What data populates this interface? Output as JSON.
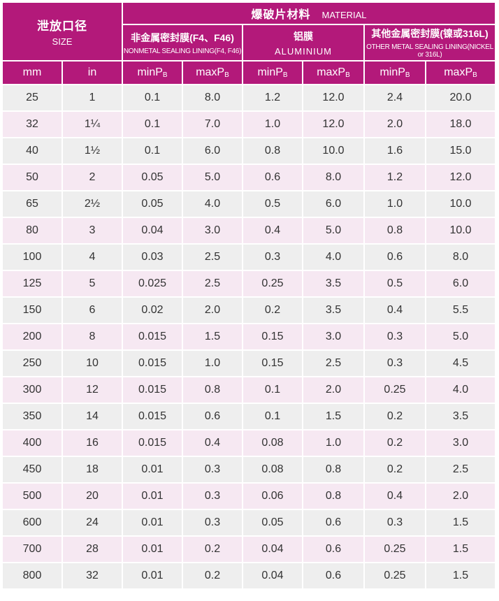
{
  "header": {
    "size_cn": "泄放口径",
    "size_en": "SIZE",
    "material_cn": "爆破片材料",
    "material_en": "MATERIAL",
    "groups": [
      {
        "cn": "非金属密封膜(F4、F46)",
        "en": "NONMETAL SEALING LINING(F4, F46)"
      },
      {
        "cn": "铝膜",
        "en": "ALUMINIUM"
      },
      {
        "cn": "其他金属密封膜(镍或316L)",
        "en": "OTHER METAL SEALING LINING(NICKEL or 316L)"
      }
    ],
    "units": {
      "mm": "mm",
      "in": "in",
      "min_prefix": "minP",
      "max_prefix": "maxP",
      "subscript": "B"
    }
  },
  "rows": [
    {
      "mm": "25",
      "in": "1",
      "nm_min": "0.1",
      "nm_max": "8.0",
      "al_min": "1.2",
      "al_max": "12.0",
      "ot_min": "2.4",
      "ot_max": "20.0"
    },
    {
      "mm": "32",
      "in": "1¼",
      "nm_min": "0.1",
      "nm_max": "7.0",
      "al_min": "1.0",
      "al_max": "12.0",
      "ot_min": "2.0",
      "ot_max": "18.0"
    },
    {
      "mm": "40",
      "in": "1½",
      "nm_min": "0.1",
      "nm_max": "6.0",
      "al_min": "0.8",
      "al_max": "10.0",
      "ot_min": "1.6",
      "ot_max": "15.0"
    },
    {
      "mm": "50",
      "in": "2",
      "nm_min": "0.05",
      "nm_max": "5.0",
      "al_min": "0.6",
      "al_max": "8.0",
      "ot_min": "1.2",
      "ot_max": "12.0"
    },
    {
      "mm": "65",
      "in": "2½",
      "nm_min": "0.05",
      "nm_max": "4.0",
      "al_min": "0.5",
      "al_max": "6.0",
      "ot_min": "1.0",
      "ot_max": "10.0"
    },
    {
      "mm": "80",
      "in": "3",
      "nm_min": "0.04",
      "nm_max": "3.0",
      "al_min": "0.4",
      "al_max": "5.0",
      "ot_min": "0.8",
      "ot_max": "10.0"
    },
    {
      "mm": "100",
      "in": "4",
      "nm_min": "0.03",
      "nm_max": "2.5",
      "al_min": "0.3",
      "al_max": "4.0",
      "ot_min": "0.6",
      "ot_max": "8.0"
    },
    {
      "mm": "125",
      "in": "5",
      "nm_min": "0.025",
      "nm_max": "2.5",
      "al_min": "0.25",
      "al_max": "3.5",
      "ot_min": "0.5",
      "ot_max": "6.0"
    },
    {
      "mm": "150",
      "in": "6",
      "nm_min": "0.02",
      "nm_max": "2.0",
      "al_min": "0.2",
      "al_max": "3.5",
      "ot_min": "0.4",
      "ot_max": "5.5"
    },
    {
      "mm": "200",
      "in": "8",
      "nm_min": "0.015",
      "nm_max": "1.5",
      "al_min": "0.15",
      "al_max": "3.0",
      "ot_min": "0.3",
      "ot_max": "5.0"
    },
    {
      "mm": "250",
      "in": "10",
      "nm_min": "0.015",
      "nm_max": "1.0",
      "al_min": "0.15",
      "al_max": "2.5",
      "ot_min": "0.3",
      "ot_max": "4.5"
    },
    {
      "mm": "300",
      "in": "12",
      "nm_min": "0.015",
      "nm_max": "0.8",
      "al_min": "0.1",
      "al_max": "2.0",
      "ot_min": "0.25",
      "ot_max": "4.0"
    },
    {
      "mm": "350",
      "in": "14",
      "nm_min": "0.015",
      "nm_max": "0.6",
      "al_min": "0.1",
      "al_max": "1.5",
      "ot_min": "0.2",
      "ot_max": "3.5"
    },
    {
      "mm": "400",
      "in": "16",
      "nm_min": "0.015",
      "nm_max": "0.4",
      "al_min": "0.08",
      "al_max": "1.0",
      "ot_min": "0.2",
      "ot_max": "3.0"
    },
    {
      "mm": "450",
      "in": "18",
      "nm_min": "0.01",
      "nm_max": "0.3",
      "al_min": "0.08",
      "al_max": "0.8",
      "ot_min": "0.2",
      "ot_max": "2.5"
    },
    {
      "mm": "500",
      "in": "20",
      "nm_min": "0.01",
      "nm_max": "0.3",
      "al_min": "0.06",
      "al_max": "0.8",
      "ot_min": "0.4",
      "ot_max": "2.0"
    },
    {
      "mm": "600",
      "in": "24",
      "nm_min": "0.01",
      "nm_max": "0.3",
      "al_min": "0.05",
      "al_max": "0.6",
      "ot_min": "0.3",
      "ot_max": "1.5"
    },
    {
      "mm": "700",
      "in": "28",
      "nm_min": "0.01",
      "nm_max": "0.2",
      "al_min": "0.04",
      "al_max": "0.6",
      "ot_min": "0.25",
      "ot_max": "1.5"
    },
    {
      "mm": "800",
      "in": "32",
      "nm_min": "0.01",
      "nm_max": "0.2",
      "al_min": "0.04",
      "al_max": "0.6",
      "ot_min": "0.25",
      "ot_max": "1.5"
    }
  ],
  "colors": {
    "header_bg": "#b3197a",
    "row_gray": "#eeeeee",
    "row_pink": "#f6e8f2"
  }
}
